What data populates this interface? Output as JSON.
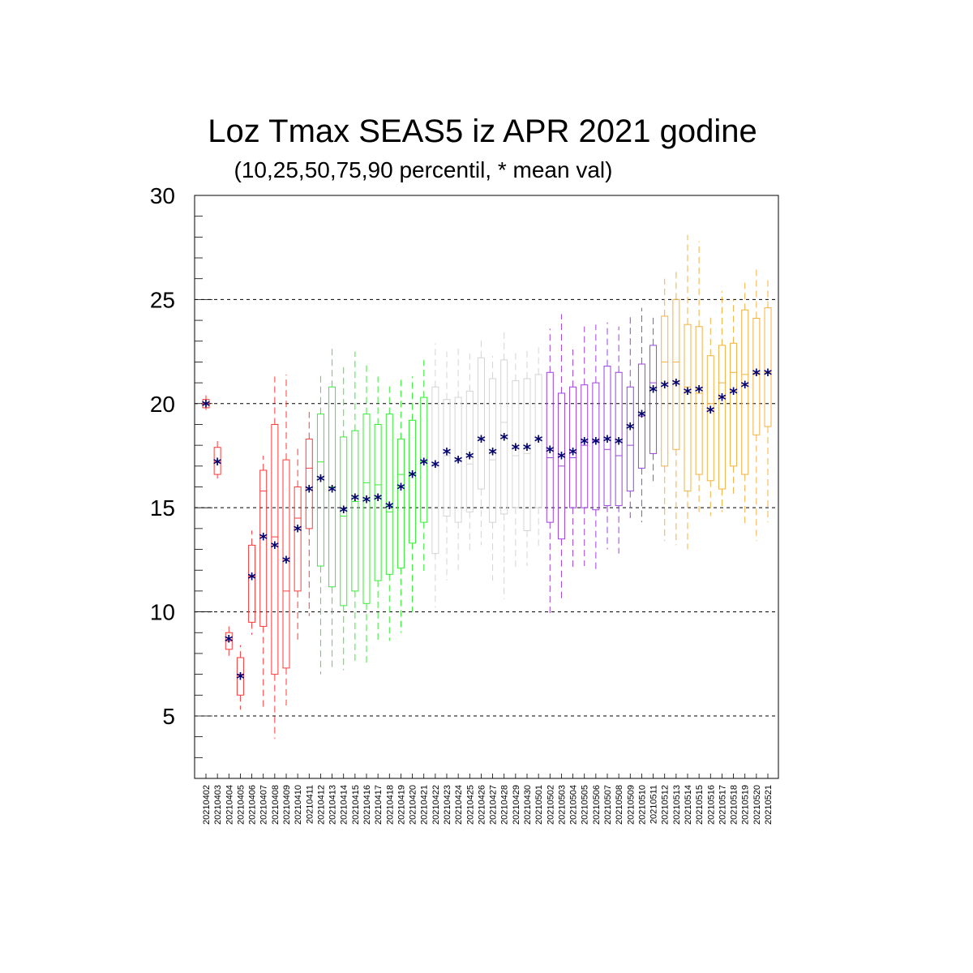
{
  "chart_data": {
    "type": "boxplot",
    "title": "Loz Tmax SEAS5 iz APR 2021 godine",
    "subtitle": "(10,25,50,75,90 percentil, * mean val)",
    "mean_marker": "*",
    "ylim": [
      2,
      30
    ],
    "yticks": [
      5,
      10,
      15,
      20,
      25,
      30
    ],
    "grid_y": [
      5,
      10,
      15,
      20,
      25,
      30
    ],
    "categories": [
      "20210402",
      "20210403",
      "20210404",
      "20210405",
      "20210406",
      "20210407",
      "20210408",
      "20210409",
      "20210410",
      "20210411",
      "20210412",
      "20210413",
      "20210414",
      "20210415",
      "20210416",
      "20210417",
      "20210418",
      "20210419",
      "20210420",
      "20210421",
      "20210422",
      "20210423",
      "20210424",
      "20210425",
      "20210426",
      "20210427",
      "20210428",
      "20210429",
      "20210430",
      "20210501",
      "20210502",
      "20210503",
      "20210504",
      "20210505",
      "20210506",
      "20210507",
      "20210508",
      "20210509",
      "20210510",
      "20210511",
      "20210512",
      "20210513",
      "20210514",
      "20210515",
      "20210516",
      "20210517",
      "20210518",
      "20210519",
      "20210520",
      "20210521"
    ],
    "colors": [
      "#ff3a3a",
      "#ff3a3a",
      "#ff3a3a",
      "#ff3a3a",
      "#ff3a3a",
      "#ff3a3a",
      "#ff3a3a",
      "#ff3a3a",
      "#ff3a3a",
      "#ff3a3a",
      "#33ee33",
      "#33ee33",
      "#33ee33",
      "#33ee33",
      "#33ee33",
      "#33ee33",
      "#33ee33",
      "#33ee33",
      "#33ee33",
      "#33ee33",
      "#d4d4d4",
      "#d4d4d4",
      "#d4d4d4",
      "#d4d4d4",
      "#d4d4d4",
      "#d4d4d4",
      "#d4d4d4",
      "#d4d4d4",
      "#d4d4d4",
      "#d4d4d4",
      "#a040e0",
      "#a040e0",
      "#a040e0",
      "#a040e0",
      "#a040e0",
      "#a040e0",
      "#a040e0",
      "#a040e0",
      "#a040e0",
      "#a040e0",
      "#f5b040",
      "#f5b040",
      "#f5b040",
      "#f5b040",
      "#f5b040",
      "#f5b040",
      "#f5b040",
      "#f5b040",
      "#f5b040",
      "#f5b040"
    ],
    "mean_color": "#00006e",
    "p10": [
      19.7,
      16.4,
      7.8,
      5.3,
      8.9,
      5.3,
      3.9,
      5.5,
      8.5,
      9.8,
      7.0,
      7.2,
      7.2,
      7.5,
      7.5,
      8.5,
      8.6,
      9.0,
      10.0,
      11.8,
      10.2,
      11.5,
      12.0,
      12.8,
      13.2,
      11.5,
      10.6,
      12.0,
      12.2,
      13.0,
      9.8,
      10.5,
      12.0,
      12.2,
      12.0,
      13.0,
      12.8,
      14.5,
      14.3,
      16.2,
      13.4,
      13.2,
      13.0,
      14.8,
      14.6,
      14.8,
      15.5,
      14.2,
      13.4,
      14.3
    ],
    "p25": [
      19.8,
      16.6,
      8.2,
      6.0,
      9.5,
      9.3,
      7.0,
      7.3,
      11.0,
      14.0,
      12.2,
      11.2,
      10.3,
      11.0,
      10.4,
      11.5,
      11.8,
      12.1,
      13.3,
      14.3,
      12.8,
      14.6,
      14.3,
      14.8,
      15.9,
      14.3,
      14.7,
      15.0,
      13.9,
      15.0,
      14.3,
      13.5,
      15.0,
      15.0,
      14.9,
      15.1,
      15.1,
      15.8,
      16.9,
      17.6,
      17.0,
      17.8,
      15.8,
      16.6,
      16.3,
      15.9,
      17.0,
      16.6,
      18.5,
      18.9
    ],
    "p50": [
      20.0,
      17.2,
      8.6,
      7.0,
      11.7,
      15.8,
      13.6,
      11.0,
      14.5,
      16.9,
      17.2,
      16.0,
      14.6,
      15.3,
      16.2,
      16.1,
      14.8,
      16.6,
      16.6,
      17.2,
      17.0,
      17.5,
      17.2,
      17.1,
      18.3,
      17.3,
      19.1,
      17.5,
      17.6,
      18.3,
      17.4,
      17.0,
      17.4,
      18.0,
      18.2,
      17.8,
      17.5,
      18.0,
      19.4,
      21.0,
      22.0,
      22.0,
      20.8,
      20.5,
      20.0,
      21.0,
      21.5,
      21.4,
      21.4,
      21.5
    ],
    "p75": [
      20.2,
      17.9,
      9.0,
      7.8,
      13.2,
      16.8,
      19.0,
      17.3,
      16.0,
      18.3,
      19.5,
      20.8,
      18.4,
      18.7,
      19.5,
      19.0,
      19.5,
      18.3,
      19.2,
      20.3,
      20.8,
      20.2,
      20.3,
      20.6,
      22.2,
      21.2,
      22.1,
      21.1,
      21.2,
      21.4,
      21.5,
      20.5,
      20.8,
      20.9,
      21.0,
      21.8,
      21.5,
      20.8,
      21.9,
      22.8,
      24.2,
      25.0,
      23.8,
      23.7,
      22.3,
      22.8,
      22.9,
      24.5,
      24.1,
      24.6
    ],
    "p90": [
      20.4,
      18.2,
      9.3,
      8.4,
      13.9,
      17.5,
      21.3,
      21.4,
      17.9,
      19.6,
      21.5,
      22.8,
      21.8,
      22.5,
      21.9,
      21.3,
      20.9,
      21.2,
      21.3,
      22.1,
      22.9,
      22.5,
      22.7,
      22.4,
      23.1,
      22.3,
      23.6,
      22.6,
      22.6,
      22.7,
      23.6,
      24.3,
      22.6,
      23.7,
      23.8,
      23.9,
      23.7,
      24.2,
      24.6,
      24.3,
      26.0,
      26.5,
      28.1,
      27.8,
      24.2,
      25.4,
      25.0,
      25.8,
      26.5,
      26.0
    ],
    "mean": [
      20.0,
      17.2,
      8.7,
      6.9,
      11.7,
      13.6,
      13.2,
      12.5,
      14.0,
      15.9,
      16.4,
      15.9,
      14.9,
      15.5,
      15.4,
      15.5,
      15.1,
      16.0,
      16.6,
      17.2,
      17.1,
      17.7,
      17.3,
      17.5,
      18.3,
      17.7,
      18.4,
      17.9,
      17.9,
      18.3,
      17.8,
      17.5,
      17.7,
      18.2,
      18.2,
      18.3,
      18.2,
      18.9,
      19.5,
      20.7,
      20.9,
      21.0,
      20.6,
      20.7,
      19.7,
      20.3,
      20.6,
      20.9,
      21.5,
      21.5
    ]
  }
}
